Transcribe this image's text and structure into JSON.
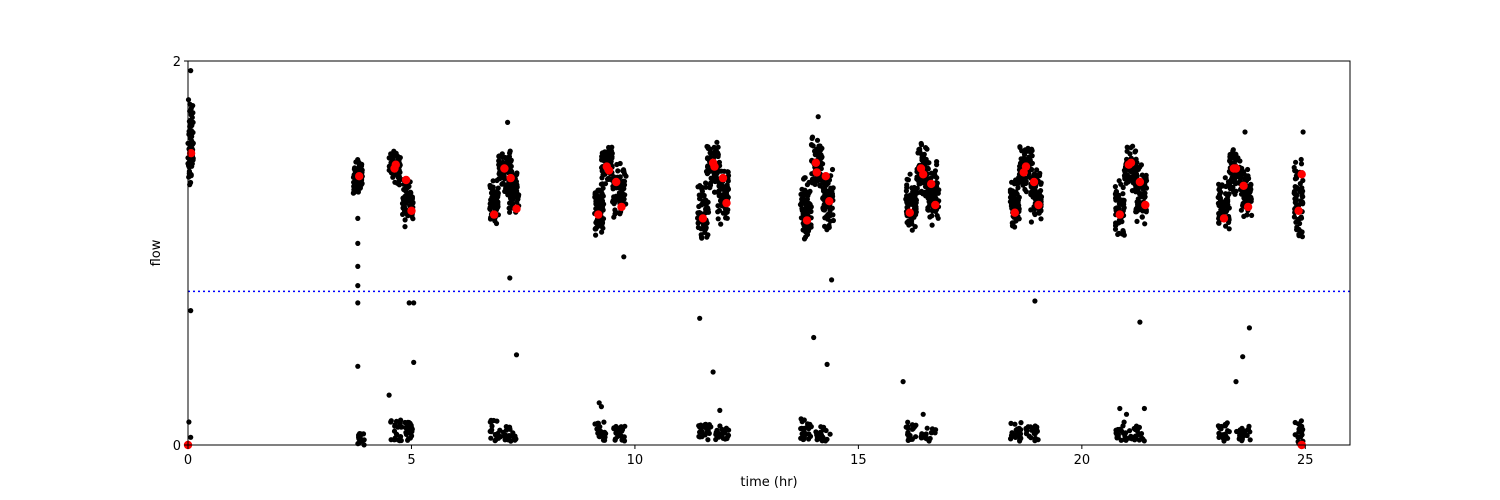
{
  "chart_data": {
    "type": "scatter",
    "title": "",
    "xlabel": "time (hr)",
    "ylabel": "flow",
    "xlim": [
      0,
      26
    ],
    "ylim": [
      0,
      2
    ],
    "xticks": [
      0,
      5,
      10,
      15,
      20,
      25
    ],
    "yticks": [
      0,
      2
    ],
    "xtick_labels": [
      "0",
      "5",
      "10",
      "15",
      "20",
      "25"
    ],
    "ytick_labels": [
      "0",
      "2"
    ],
    "grid": false,
    "colors": {
      "raw": "#000000",
      "highlight": "#ff0000",
      "threshold": "#0000ff"
    },
    "threshold": {
      "y": 0.8,
      "style": "dotted"
    },
    "clusters": [
      {
        "x": [
          0.0,
          0.12
        ],
        "y": [
          1.3,
          1.84
        ]
      },
      {
        "x": [
          3.7,
          3.9
        ],
        "y": [
          1.3,
          1.5
        ]
      },
      {
        "x": [
          4.5,
          4.75
        ],
        "y": [
          1.35,
          1.55
        ]
      },
      {
        "x": [
          4.8,
          5.05
        ],
        "y": [
          1.13,
          1.4
        ]
      },
      {
        "x": [
          6.75,
          6.95
        ],
        "y": [
          1.12,
          1.4
        ]
      },
      {
        "x": [
          6.95,
          7.25
        ],
        "y": [
          1.3,
          1.55
        ]
      },
      {
        "x": [
          7.15,
          7.4
        ],
        "y": [
          1.2,
          1.45
        ]
      },
      {
        "x": [
          9.1,
          9.3
        ],
        "y": [
          1.08,
          1.38
        ]
      },
      {
        "x": [
          9.25,
          9.5
        ],
        "y": [
          1.35,
          1.58
        ]
      },
      {
        "x": [
          9.5,
          9.8
        ],
        "y": [
          1.15,
          1.48
        ]
      },
      {
        "x": [
          11.4,
          11.65
        ],
        "y": [
          1.06,
          1.38
        ]
      },
      {
        "x": [
          11.6,
          11.9
        ],
        "y": [
          1.3,
          1.58
        ]
      },
      {
        "x": [
          11.85,
          12.1
        ],
        "y": [
          1.12,
          1.45
        ]
      },
      {
        "x": [
          13.7,
          13.95
        ],
        "y": [
          1.05,
          1.4
        ]
      },
      {
        "x": [
          13.95,
          14.2
        ],
        "y": [
          1.32,
          1.62
        ]
      },
      {
        "x": [
          14.2,
          14.45
        ],
        "y": [
          1.1,
          1.47
        ]
      },
      {
        "x": [
          16.05,
          16.3
        ],
        "y": [
          1.1,
          1.42
        ]
      },
      {
        "x": [
          16.3,
          16.55
        ],
        "y": [
          1.28,
          1.58
        ]
      },
      {
        "x": [
          16.55,
          16.8
        ],
        "y": [
          1.12,
          1.5
        ]
      },
      {
        "x": [
          18.4,
          18.6
        ],
        "y": [
          1.12,
          1.42
        ]
      },
      {
        "x": [
          18.6,
          18.9
        ],
        "y": [
          1.3,
          1.58
        ]
      },
      {
        "x": [
          18.85,
          19.1
        ],
        "y": [
          1.15,
          1.48
        ]
      },
      {
        "x": [
          20.75,
          20.95
        ],
        "y": [
          1.07,
          1.4
        ]
      },
      {
        "x": [
          20.95,
          21.25
        ],
        "y": [
          1.32,
          1.57
        ]
      },
      {
        "x": [
          21.2,
          21.45
        ],
        "y": [
          1.13,
          1.48
        ]
      },
      {
        "x": [
          23.05,
          23.3
        ],
        "y": [
          1.1,
          1.4
        ]
      },
      {
        "x": [
          23.3,
          23.55
        ],
        "y": [
          1.3,
          1.55
        ]
      },
      {
        "x": [
          23.55,
          23.8
        ],
        "y": [
          1.15,
          1.48
        ]
      },
      {
        "x": [
          24.75,
          24.95
        ],
        "y": [
          1.07,
          1.5
        ]
      }
    ],
    "low_clusters": [
      {
        "x": [
          3.8,
          3.95
        ],
        "y": [
          0.0,
          0.06
        ]
      },
      {
        "x": [
          4.5,
          4.8
        ],
        "y": [
          0.02,
          0.13
        ]
      },
      {
        "x": [
          4.85,
          5.05
        ],
        "y": [
          0.02,
          0.12
        ]
      },
      {
        "x": [
          6.75,
          7.0
        ],
        "y": [
          0.02,
          0.13
        ]
      },
      {
        "x": [
          7.05,
          7.35
        ],
        "y": [
          0.02,
          0.1
        ]
      },
      {
        "x": [
          9.1,
          9.35
        ],
        "y": [
          0.02,
          0.12
        ]
      },
      {
        "x": [
          9.5,
          9.8
        ],
        "y": [
          0.02,
          0.1
        ]
      },
      {
        "x": [
          11.4,
          11.7
        ],
        "y": [
          0.02,
          0.12
        ]
      },
      {
        "x": [
          11.8,
          12.1
        ],
        "y": [
          0.02,
          0.1
        ]
      },
      {
        "x": [
          13.7,
          13.95
        ],
        "y": [
          0.02,
          0.14
        ]
      },
      {
        "x": [
          14.05,
          14.4
        ],
        "y": [
          0.02,
          0.1
        ]
      },
      {
        "x": [
          16.05,
          16.3
        ],
        "y": [
          0.02,
          0.12
        ]
      },
      {
        "x": [
          16.4,
          16.75
        ],
        "y": [
          0.02,
          0.1
        ]
      },
      {
        "x": [
          18.4,
          18.65
        ],
        "y": [
          0.02,
          0.12
        ]
      },
      {
        "x": [
          18.75,
          19.05
        ],
        "y": [
          0.02,
          0.1
        ]
      },
      {
        "x": [
          20.75,
          21.0
        ],
        "y": [
          0.02,
          0.13
        ]
      },
      {
        "x": [
          21.05,
          21.45
        ],
        "y": [
          0.02,
          0.1
        ]
      },
      {
        "x": [
          23.05,
          23.3
        ],
        "y": [
          0.02,
          0.12
        ]
      },
      {
        "x": [
          23.45,
          23.8
        ],
        "y": [
          0.02,
          0.1
        ]
      },
      {
        "x": [
          24.75,
          24.95
        ],
        "y": [
          0.0,
          0.13
        ]
      }
    ],
    "outliers": [
      {
        "x": 0.06,
        "y": 1.95
      },
      {
        "x": 0.06,
        "y": 0.7
      },
      {
        "x": 0.02,
        "y": 0.12
      },
      {
        "x": 0.06,
        "y": 0.04
      },
      {
        "x": 3.8,
        "y": 1.18
      },
      {
        "x": 3.8,
        "y": 1.05
      },
      {
        "x": 3.8,
        "y": 0.93
      },
      {
        "x": 3.8,
        "y": 0.83
      },
      {
        "x": 3.8,
        "y": 0.74
      },
      {
        "x": 3.8,
        "y": 0.41
      },
      {
        "x": 4.5,
        "y": 0.26
      },
      {
        "x": 4.95,
        "y": 0.74
      },
      {
        "x": 5.05,
        "y": 0.74
      },
      {
        "x": 5.05,
        "y": 0.43
      },
      {
        "x": 7.15,
        "y": 1.68
      },
      {
        "x": 7.2,
        "y": 0.87
      },
      {
        "x": 7.35,
        "y": 0.47
      },
      {
        "x": 9.2,
        "y": 0.22
      },
      {
        "x": 9.25,
        "y": 0.2
      },
      {
        "x": 9.75,
        "y": 0.98
      },
      {
        "x": 11.45,
        "y": 0.66
      },
      {
        "x": 11.75,
        "y": 0.38
      },
      {
        "x": 11.9,
        "y": 0.18
      },
      {
        "x": 14.1,
        "y": 1.71
      },
      {
        "x": 14.0,
        "y": 0.56
      },
      {
        "x": 14.3,
        "y": 0.42
      },
      {
        "x": 14.4,
        "y": 0.86
      },
      {
        "x": 16.0,
        "y": 0.33
      },
      {
        "x": 16.45,
        "y": 0.16
      },
      {
        "x": 18.95,
        "y": 0.75
      },
      {
        "x": 20.85,
        "y": 0.19
      },
      {
        "x": 21.0,
        "y": 0.16
      },
      {
        "x": 21.3,
        "y": 0.64
      },
      {
        "x": 21.4,
        "y": 0.19
      },
      {
        "x": 23.45,
        "y": 0.33
      },
      {
        "x": 23.6,
        "y": 0.46
      },
      {
        "x": 23.65,
        "y": 1.63
      },
      {
        "x": 23.75,
        "y": 0.61
      },
      {
        "x": 24.95,
        "y": 1.63
      }
    ],
    "red_points": [
      {
        "x": 0.07,
        "y": 1.52
      },
      {
        "x": 3.83,
        "y": 1.4
      },
      {
        "x": 4.62,
        "y": 1.44
      },
      {
        "x": 4.65,
        "y": 1.46
      },
      {
        "x": 4.88,
        "y": 1.38
      },
      {
        "x": 5.0,
        "y": 1.22
      },
      {
        "x": 6.85,
        "y": 1.2
      },
      {
        "x": 7.08,
        "y": 1.44
      },
      {
        "x": 7.22,
        "y": 1.39
      },
      {
        "x": 7.35,
        "y": 1.23
      },
      {
        "x": 9.18,
        "y": 1.2
      },
      {
        "x": 9.37,
        "y": 1.45
      },
      {
        "x": 9.42,
        "y": 1.43
      },
      {
        "x": 9.58,
        "y": 1.37
      },
      {
        "x": 9.7,
        "y": 1.24
      },
      {
        "x": 11.52,
        "y": 1.18
      },
      {
        "x": 11.75,
        "y": 1.47
      },
      {
        "x": 11.78,
        "y": 1.45
      },
      {
        "x": 11.97,
        "y": 1.39
      },
      {
        "x": 12.05,
        "y": 1.26
      },
      {
        "x": 13.85,
        "y": 1.17
      },
      {
        "x": 14.05,
        "y": 1.47
      },
      {
        "x": 14.07,
        "y": 1.42
      },
      {
        "x": 14.27,
        "y": 1.4
      },
      {
        "x": 14.35,
        "y": 1.27
      },
      {
        "x": 16.15,
        "y": 1.21
      },
      {
        "x": 16.4,
        "y": 1.44
      },
      {
        "x": 16.45,
        "y": 1.41
      },
      {
        "x": 16.63,
        "y": 1.36
      },
      {
        "x": 16.72,
        "y": 1.25
      },
      {
        "x": 18.5,
        "y": 1.21
      },
      {
        "x": 18.7,
        "y": 1.42
      },
      {
        "x": 18.75,
        "y": 1.45
      },
      {
        "x": 18.93,
        "y": 1.37
      },
      {
        "x": 19.03,
        "y": 1.25
      },
      {
        "x": 20.85,
        "y": 1.2
      },
      {
        "x": 21.05,
        "y": 1.46
      },
      {
        "x": 21.1,
        "y": 1.47
      },
      {
        "x": 21.3,
        "y": 1.37
      },
      {
        "x": 21.42,
        "y": 1.25
      },
      {
        "x": 23.18,
        "y": 1.18
      },
      {
        "x": 23.4,
        "y": 1.44
      },
      {
        "x": 23.45,
        "y": 1.44
      },
      {
        "x": 23.62,
        "y": 1.35
      },
      {
        "x": 23.72,
        "y": 1.24
      },
      {
        "x": 24.85,
        "y": 1.22
      },
      {
        "x": 24.92,
        "y": 1.41
      },
      {
        "x": 24.92,
        "y": 0.0
      },
      {
        "x": 0.0,
        "y": 0.0
      }
    ]
  }
}
